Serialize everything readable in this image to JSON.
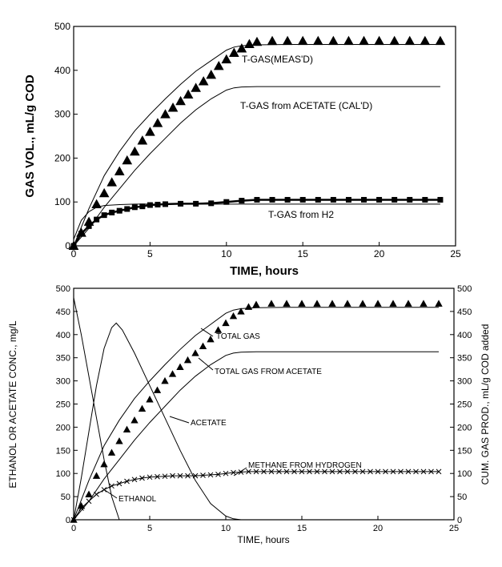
{
  "chart_data": [
    {
      "type": "line",
      "xlabel": "TIME, hours",
      "ylabel": "GAS VOL., mL/g COD",
      "xlim": [
        0,
        25
      ],
      "ylim": [
        0,
        500
      ],
      "xticks": [
        "0",
        "5",
        "10",
        "15",
        "20",
        "25"
      ],
      "yticks": [
        "0",
        "100",
        "200",
        "300",
        "400",
        "500"
      ],
      "grid": false,
      "series": [
        {
          "name": "T-GAS(MEAS'D)",
          "marker": "triangle",
          "x": [
            0,
            0.5,
            1,
            1.5,
            2,
            2.5,
            3,
            3.5,
            4,
            4.5,
            5,
            5.5,
            6,
            6.5,
            7,
            7.5,
            8,
            8.5,
            9,
            9.5,
            10,
            10.5,
            11,
            11.5,
            12,
            13,
            14,
            15,
            16,
            17,
            18,
            19,
            20,
            21,
            22,
            23,
            24
          ],
          "y": [
            0,
            30,
            55,
            95,
            120,
            145,
            170,
            195,
            215,
            240,
            260,
            280,
            300,
            315,
            330,
            345,
            360,
            375,
            390,
            410,
            425,
            440,
            450,
            460,
            465,
            467,
            467,
            467,
            467,
            467,
            467,
            467,
            467,
            467,
            467,
            467,
            467
          ]
        },
        {
          "name": "",
          "marker": "none",
          "x": [
            0,
            1,
            2,
            3,
            4,
            5,
            6,
            7,
            8,
            9,
            10,
            10.5,
            11,
            12,
            14,
            16,
            18,
            20,
            22,
            24
          ],
          "y": [
            0,
            85,
            160,
            215,
            262,
            300,
            335,
            368,
            398,
            422,
            446,
            453,
            456,
            458,
            459,
            459,
            459,
            459,
            459,
            459
          ]
        },
        {
          "name": "T-GAS from ACETATE (CAL'D)",
          "marker": "none",
          "x": [
            0,
            1,
            2,
            3,
            4,
            5,
            6,
            7,
            8,
            9,
            10,
            10.5,
            11,
            12,
            14,
            16,
            18,
            20,
            22,
            24
          ],
          "y": [
            0,
            40,
            88,
            130,
            172,
            210,
            245,
            280,
            310,
            335,
            355,
            360,
            362,
            363,
            363,
            363,
            363,
            363,
            363,
            363
          ]
        },
        {
          "name": "T-GAS from H2",
          "marker": "square",
          "x": [
            0,
            0.5,
            1,
            1.5,
            2,
            2.5,
            3,
            3.5,
            4,
            4.5,
            5,
            5.5,
            6,
            7,
            8,
            9,
            10,
            11,
            12,
            13,
            14,
            15,
            16,
            17,
            18,
            19,
            20,
            21,
            22,
            23,
            24
          ],
          "y": [
            0,
            28,
            45,
            60,
            70,
            76,
            80,
            84,
            88,
            90,
            93,
            94,
            95,
            96,
            96,
            97,
            100,
            103,
            105,
            105,
            105,
            105,
            105,
            105,
            105,
            105,
            105,
            105,
            105,
            105,
            105
          ]
        },
        {
          "name": "",
          "marker": "none",
          "x": [
            0,
            0.5,
            1,
            1.5,
            2,
            3,
            4,
            5,
            6,
            8,
            10,
            12,
            14,
            16,
            18,
            20,
            22,
            24
          ],
          "y": [
            15,
            58,
            78,
            88,
            92,
            94,
            95,
            95,
            95,
            95,
            95,
            95,
            95,
            95,
            95,
            95,
            95,
            95
          ]
        }
      ]
    },
    {
      "type": "line",
      "xlabel": "TIME, hours",
      "ylabel": "ETHANOL OR ACETATE CONC., mg/L",
      "ylabel_right": "CUM. GAS PROD., mL/g COD added",
      "xlim": [
        0,
        25
      ],
      "ylim": [
        0,
        500
      ],
      "ylim_right": [
        0,
        500
      ],
      "xticks": [
        "0",
        "5",
        "10",
        "15",
        "20",
        "25"
      ],
      "yticks": [
        "0",
        "50",
        "100",
        "150",
        "200",
        "250",
        "300",
        "350",
        "400",
        "450",
        "500"
      ],
      "grid": false,
      "annotations": [
        "TOTAL GAS",
        "TOTAL GAS FROM ACETATE",
        "ACETATE",
        "METHANE FROM HYDROGEN",
        "ETHANOL"
      ],
      "series": [
        {
          "name": "ETHANOL",
          "marker": "none",
          "x": [
            0,
            0.5,
            1,
            1.5,
            2,
            2.5,
            3
          ],
          "y": [
            480,
            400,
            310,
            220,
            130,
            50,
            0
          ]
        },
        {
          "name": "ACETATE",
          "marker": "none",
          "x": [
            0,
            0.5,
            1,
            1.5,
            2,
            2.5,
            2.8,
            3.2,
            4,
            5,
            6,
            7,
            8,
            9,
            10,
            10.5,
            11,
            12
          ],
          "y": [
            0,
            90,
            190,
            290,
            370,
            415,
            425,
            410,
            360,
            290,
            220,
            150,
            85,
            35,
            8,
            2,
            0,
            0
          ]
        },
        {
          "name": "TOTAL GAS",
          "marker": "triangle",
          "x": [
            0,
            0.5,
            1,
            1.5,
            2,
            2.5,
            3,
            3.5,
            4,
            4.5,
            5,
            5.5,
            6,
            6.5,
            7,
            7.5,
            8,
            8.5,
            9,
            9.5,
            10,
            10.5,
            11,
            11.5,
            12,
            13,
            14,
            15,
            16,
            17,
            18,
            19,
            20,
            21,
            22,
            23,
            24
          ],
          "y": [
            0,
            30,
            55,
            95,
            120,
            145,
            170,
            195,
            215,
            240,
            260,
            280,
            300,
            315,
            330,
            345,
            360,
            375,
            390,
            410,
            425,
            440,
            450,
            460,
            465,
            467,
            467,
            467,
            467,
            467,
            467,
            467,
            467,
            467,
            467,
            467,
            467
          ]
        },
        {
          "name": "",
          "marker": "none",
          "x": [
            0,
            1,
            2,
            3,
            4,
            5,
            6,
            7,
            8,
            9,
            10,
            10.5,
            11,
            12,
            14,
            16,
            18,
            20,
            22,
            24
          ],
          "y": [
            0,
            85,
            160,
            215,
            262,
            300,
            335,
            368,
            398,
            422,
            446,
            453,
            456,
            458,
            459,
            459,
            459,
            459,
            459,
            459
          ]
        },
        {
          "name": "TOTAL GAS FROM ACETATE",
          "marker": "none",
          "x": [
            0,
            1,
            2,
            3,
            4,
            5,
            6,
            7,
            8,
            9,
            10,
            10.5,
            11,
            12,
            14,
            16,
            18,
            20,
            22,
            24
          ],
          "y": [
            0,
            40,
            88,
            130,
            172,
            210,
            245,
            280,
            310,
            335,
            355,
            360,
            362,
            363,
            363,
            363,
            363,
            363,
            363,
            363
          ]
        },
        {
          "name": "METHANE FROM HYDROGEN",
          "marker": "cross",
          "x": [
            0,
            0.5,
            1,
            1.5,
            2,
            2.5,
            3,
            3.5,
            4,
            4.5,
            5,
            5.5,
            6,
            6.5,
            7,
            7.5,
            8,
            8.5,
            9,
            9.5,
            10,
            10.5,
            11,
            11.5,
            12,
            12.5,
            13,
            13.5,
            14,
            14.5,
            15,
            15.5,
            16,
            16.5,
            17,
            17.5,
            18,
            18.5,
            19,
            19.5,
            20,
            20.5,
            21,
            21.5,
            22,
            22.5,
            23,
            23.5,
            24
          ],
          "y": [
            0,
            25,
            40,
            55,
            65,
            73,
            78,
            83,
            87,
            90,
            92,
            93,
            94,
            95,
            95,
            95,
            95,
            96,
            97,
            98,
            100,
            102,
            103,
            104,
            104,
            104,
            104,
            104,
            104,
            104,
            104,
            104,
            104,
            104,
            104,
            104,
            104,
            104,
            104,
            104,
            104,
            104,
            104,
            104,
            104,
            104,
            104,
            104,
            104
          ]
        }
      ]
    }
  ]
}
